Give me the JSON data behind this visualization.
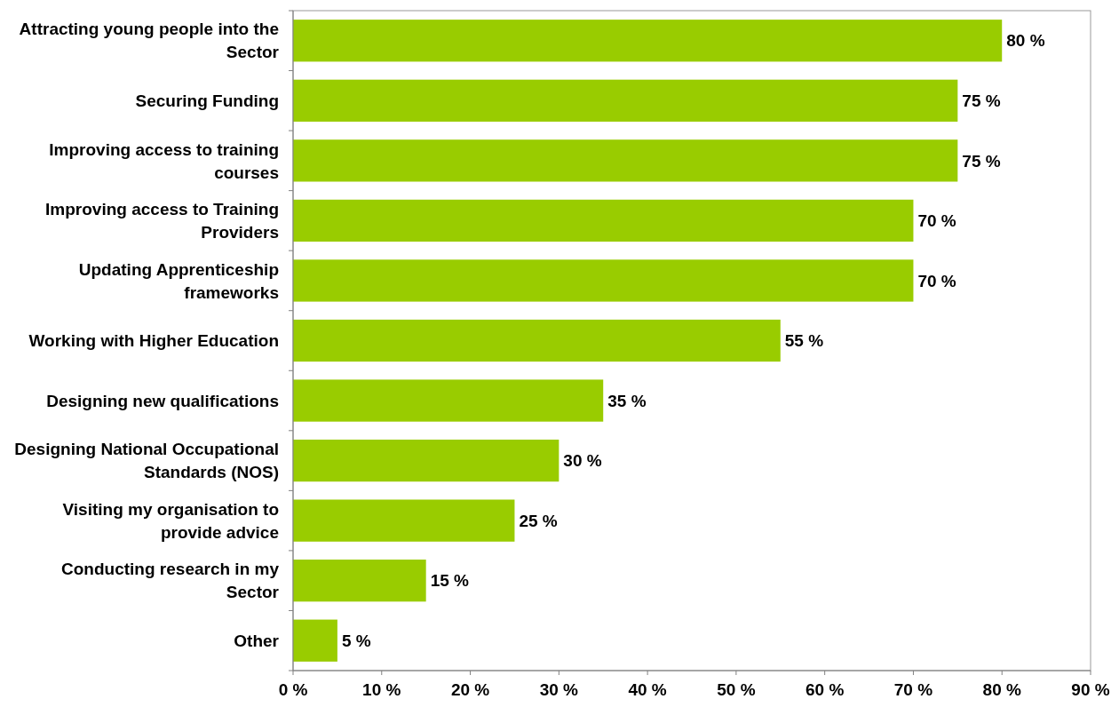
{
  "chart_data": {
    "type": "bar",
    "orientation": "horizontal",
    "categories": [
      "Attracting young people into the Sector",
      "Securing Funding",
      "Improving access to training courses",
      "Improving access to Training Providers",
      "Updating Apprenticeship frameworks",
      "Working with Higher Education",
      "Designing new qualifications",
      "Designing National Occupational Standards (NOS)",
      "Visiting my organisation to provide advice",
      "Conducting research in my Sector",
      "Other"
    ],
    "values": [
      80,
      75,
      75,
      70,
      70,
      55,
      35,
      30,
      25,
      15,
      5
    ],
    "value_labels": [
      "80 %",
      "75 %",
      "75 %",
      "70 %",
      "70 %",
      "55 %",
      "35 %",
      "30 %",
      "25 %",
      "15 %",
      "5 %"
    ],
    "color": "#99cc00",
    "xlim": [
      0,
      90
    ],
    "xticks": [
      {
        "value": 0,
        "label": "0 %"
      },
      {
        "value": 10,
        "label": "10 %"
      },
      {
        "value": 20,
        "label": "20 %"
      },
      {
        "value": 30,
        "label": "30 %"
      },
      {
        "value": 40,
        "label": "40 %"
      },
      {
        "value": 50,
        "label": "50 %"
      },
      {
        "value": 60,
        "label": "60 %"
      },
      {
        "value": 70,
        "label": "70 %"
      },
      {
        "value": 80,
        "label": "80 %"
      },
      {
        "value": 90,
        "label": "90 %"
      }
    ],
    "grid": false
  }
}
